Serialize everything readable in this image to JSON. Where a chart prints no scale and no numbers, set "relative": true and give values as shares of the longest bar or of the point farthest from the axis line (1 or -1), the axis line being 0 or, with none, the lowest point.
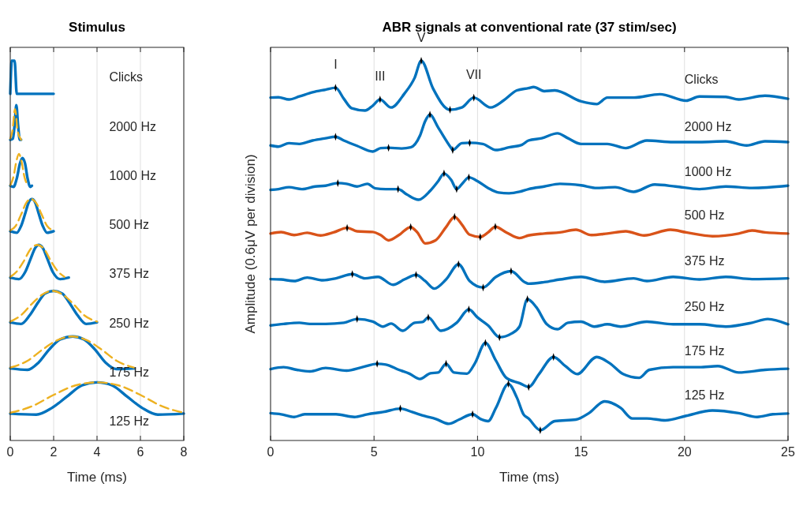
{
  "chart_data": [
    {
      "type": "line",
      "title": "Stimulus",
      "xlabel": "Time (ms)",
      "xlim": [
        0,
        8
      ],
      "xticks": [
        0,
        2,
        4,
        6,
        8
      ],
      "relative": true,
      "grid": "x",
      "annotations": [
        "Clicks",
        "2000 Hz",
        "1000 Hz",
        "500 Hz",
        "375 Hz",
        "250 Hz",
        "175 Hz",
        "125 Hz"
      ],
      "series": [
        {
          "color": "#0072bd",
          "x": [
            0,
            0.07,
            0.2,
            0.3,
            2
          ],
          "values": [
            0.913,
            1,
            1,
            0.913,
            0.913
          ]
        },
        {
          "color": "#0072bd",
          "x": [
            0,
            0.12,
            0.2,
            0.28,
            0.36,
            0.44,
            0.5
          ],
          "values": [
            0.792,
            0.795,
            0.83,
            0.883,
            0.83,
            0.792,
            0.792
          ]
        },
        {
          "color": "#edb120",
          "line_style": "dashed",
          "x": [
            0,
            0.1,
            0.22,
            0.34,
            0.5
          ],
          "values": [
            0.795,
            0.815,
            0.873,
            0.815,
            0.792
          ]
        },
        {
          "color": "#0072bd",
          "x": [
            0,
            0.15,
            0.3,
            0.45,
            0.56,
            0.68,
            0.8,
            0.92,
            1.0
          ],
          "values": [
            0.671,
            0.668,
            0.69,
            0.73,
            0.744,
            0.73,
            0.69,
            0.668,
            0.671
          ]
        },
        {
          "color": "#edb120",
          "line_style": "dashed",
          "x": [
            0,
            0.15,
            0.28,
            0.4,
            0.52,
            0.65,
            0.8
          ],
          "values": [
            0.672,
            0.695,
            0.735,
            0.755,
            0.735,
            0.695,
            0.672
          ]
        },
        {
          "color": "#0072bd",
          "x": [
            0,
            0.3,
            0.5,
            0.7,
            0.85,
            1.0,
            1.15,
            1.3,
            1.5,
            1.7,
            2.0
          ],
          "values": [
            0.551,
            0.547,
            0.565,
            0.6,
            0.627,
            0.636,
            0.627,
            0.6,
            0.565,
            0.547,
            0.551
          ]
        },
        {
          "color": "#edb120",
          "line_style": "dashed",
          "x": [
            0,
            0.25,
            0.5,
            0.75,
            0.95,
            1.2,
            1.45,
            1.7,
            2.0
          ],
          "values": [
            0.553,
            0.565,
            0.595,
            0.627,
            0.636,
            0.625,
            0.595,
            0.565,
            0.553
          ]
        },
        {
          "color": "#0072bd",
          "x": [
            0,
            0.4,
            0.7,
            0.95,
            1.15,
            1.31,
            1.5,
            1.7,
            1.95,
            2.3,
            2.7
          ],
          "values": [
            0.429,
            0.425,
            0.445,
            0.48,
            0.507,
            0.515,
            0.507,
            0.48,
            0.445,
            0.425,
            0.429
          ]
        },
        {
          "color": "#edb120",
          "line_style": "dashed",
          "x": [
            0,
            0.3,
            0.6,
            0.95,
            1.25,
            1.55,
            1.9,
            2.2,
            2.5
          ],
          "values": [
            0.431,
            0.445,
            0.47,
            0.505,
            0.515,
            0.505,
            0.47,
            0.445,
            0.431
          ]
        },
        {
          "color": "#0072bd",
          "x": [
            0,
            0.5,
            0.9,
            1.3,
            1.6,
            2.0,
            2.4,
            2.7,
            3.1,
            3.5,
            4.0
          ],
          "values": [
            0.311,
            0.307,
            0.33,
            0.365,
            0.387,
            0.394,
            0.387,
            0.365,
            0.33,
            0.307,
            0.311
          ]
        },
        {
          "color": "#edb120",
          "line_style": "dashed",
          "x": [
            0,
            0.5,
            1.0,
            1.5,
            1.95,
            2.4,
            2.9,
            3.4,
            4.0
          ],
          "values": [
            0.313,
            0.33,
            0.36,
            0.385,
            0.394,
            0.385,
            0.36,
            0.33,
            0.313
          ]
        },
        {
          "color": "#0072bd",
          "x": [
            0,
            0.8,
            1.3,
            1.8,
            2.3,
            2.88,
            3.4,
            3.9,
            4.4,
            4.9,
            5.73
          ],
          "values": [
            0.19,
            0.186,
            0.205,
            0.24,
            0.266,
            0.274,
            0.266,
            0.24,
            0.205,
            0.188,
            0.19
          ]
        },
        {
          "color": "#edb120",
          "line_style": "dashed",
          "x": [
            0,
            0.8,
            1.5,
            2.2,
            2.85,
            3.5,
            4.2,
            4.9,
            5.7
          ],
          "values": [
            0.192,
            0.21,
            0.24,
            0.265,
            0.274,
            0.265,
            0.24,
            0.21,
            0.192
          ]
        },
        {
          "color": "#0072bd",
          "x": [
            0,
            1.2,
            1.9,
            2.6,
            3.3,
            4.0,
            4.7,
            5.4,
            6.1,
            6.8,
            8
          ],
          "values": [
            0.071,
            0.068,
            0.085,
            0.115,
            0.145,
            0.153,
            0.145,
            0.115,
            0.085,
            0.068,
            0.071
          ]
        },
        {
          "color": "#edb120",
          "line_style": "dashed",
          "x": [
            0,
            1,
            2,
            3,
            4,
            5,
            6,
            7,
            8
          ],
          "values": [
            0.073,
            0.09,
            0.12,
            0.145,
            0.153,
            0.145,
            0.12,
            0.09,
            0.073
          ]
        }
      ]
    },
    {
      "type": "line",
      "title": "ABR signals at conventional rate (37 stim/sec)",
      "xlabel": "Time (ms)",
      "ylabel": "Amplitude (0.6μV per division)",
      "xlim": [
        0,
        25
      ],
      "xticks": [
        0,
        5,
        10,
        15,
        20,
        25
      ],
      "relative": true,
      "grid": "x",
      "annotations": [
        {
          "text": "I",
          "x": 3.14,
          "y": 0.929
        },
        {
          "text": "III",
          "x": 5.29,
          "y": 0.898
        },
        {
          "text": "V",
          "x": 7.28,
          "y": 1
        },
        {
          "text": "VII",
          "x": 9.82,
          "y": 0.903
        }
      ],
      "series": [
        {
          "name": "Clicks",
          "color": "#0072bd",
          "x": [
            0,
            0.38,
            0.89,
            1.39,
            2.03,
            2.66,
            3.14,
            3.54,
            3.92,
            4.56,
            4.94,
            5.29,
            5.82,
            6.46,
            6.96,
            7.28,
            7.85,
            8.67,
            9.24,
            9.82,
            10.63,
            11.27,
            11.9,
            12.46,
            12.71,
            13.22,
            13.73,
            15.0,
            15.76,
            16.27,
            17.54,
            18.81,
            20.08,
            20.72,
            21.99,
            22.62,
            23.89,
            25.0
          ],
          "values": [
            0.903,
            0.904,
            0.898,
            0.906,
            0.917,
            0.924,
            0.929,
            0.9,
            0.875,
            0.869,
            0.882,
            0.898,
            0.877,
            0.913,
            0.955,
            1,
            0.927,
            0.871,
            0.877,
            0.903,
            0.877,
            0.896,
            0.922,
            0.928,
            0.931,
            0.92,
            0.922,
            0.893,
            0.886,
            0.903,
            0.903,
            0.912,
            0.895,
            0.906,
            0.905,
            0.898,
            0.908,
            0.9
          ]
        },
        {
          "name": "2000 Hz",
          "color": "#0072bd",
          "x": [
            0,
            0.38,
            0.89,
            1.39,
            2.03,
            2.66,
            3.14,
            3.54,
            4.18,
            4.94,
            5.32,
            5.7,
            6.33,
            6.77,
            7.22,
            7.47,
            7.7,
            8.1,
            8.73,
            8.8,
            9.24,
            9.62,
            10.25,
            10.89,
            11.52,
            12.15,
            12.46,
            13.1,
            13.86,
            14.37,
            15.0,
            16.27,
            17.16,
            18.18,
            19.45,
            20.72,
            21.99,
            23.0,
            23.89,
            25.0
          ],
          "values": [
            0.777,
            0.774,
            0.783,
            0.781,
            0.79,
            0.796,
            0.8,
            0.79,
            0.776,
            0.761,
            0.77,
            0.771,
            0.769,
            0.772,
            0.803,
            0.841,
            0.858,
            0.824,
            0.77,
            0.765,
            0.783,
            0.784,
            0.781,
            0.765,
            0.772,
            0.779,
            0.79,
            0.796,
            0.809,
            0.796,
            0.781,
            0.781,
            0.77,
            0.79,
            0.786,
            0.786,
            0.788,
            0.777,
            0.788,
            0.786
          ]
        },
        {
          "name": "1000 Hz",
          "color": "#0072bd",
          "x": [
            0,
            0.38,
            0.89,
            1.52,
            2.15,
            2.66,
            3.25,
            3.67,
            4.18,
            4.68,
            5.06,
            5.57,
            6.16,
            6.58,
            7.15,
            7.72,
            8.1,
            8.38,
            8.73,
            8.99,
            9.3,
            9.58,
            10.0,
            10.51,
            11.01,
            11.52,
            12.03,
            12.46,
            13.22,
            13.98,
            15.0,
            15.76,
            16.65,
            17.54,
            18.56,
            19.57,
            20.72,
            21.99,
            23.26,
            25.0
          ],
          "values": [
            0.66,
            0.662,
            0.667,
            0.662,
            0.669,
            0.671,
            0.678,
            0.676,
            0.669,
            0.676,
            0.664,
            0.662,
            0.662,
            0.648,
            0.634,
            0.658,
            0.683,
            0.703,
            0.686,
            0.662,
            0.679,
            0.693,
            0.683,
            0.665,
            0.653,
            0.651,
            0.655,
            0.662,
            0.669,
            0.676,
            0.672,
            0.665,
            0.667,
            0.655,
            0.674,
            0.669,
            0.662,
            0.669,
            0.665,
            0.671
          ]
        },
        {
          "name": "500 Hz",
          "color": "#d95319",
          "x": [
            0,
            0.51,
            1.14,
            1.77,
            2.41,
            3.04,
            3.7,
            4.18,
            4.94,
            5.32,
            5.7,
            6.2,
            6.77,
            7.09,
            7.47,
            7.97,
            8.48,
            8.89,
            9.24,
            9.62,
            10.13,
            10.51,
            10.86,
            11.39,
            12.03,
            12.46,
            13.22,
            13.98,
            14.75,
            15.51,
            16.27,
            17.16,
            18.05,
            19.32,
            20.08,
            21.35,
            22.62,
            23.26,
            23.89,
            25.0
          ],
          "values": [
            0.545,
            0.549,
            0.541,
            0.547,
            0.54,
            0.548,
            0.56,
            0.551,
            0.549,
            0.541,
            0.527,
            0.541,
            0.562,
            0.548,
            0.519,
            0.527,
            0.562,
            0.589,
            0.569,
            0.542,
            0.536,
            0.548,
            0.563,
            0.548,
            0.533,
            0.54,
            0.545,
            0.548,
            0.555,
            0.541,
            0.545,
            0.551,
            0.54,
            0.555,
            0.548,
            0.538,
            0.545,
            0.553,
            0.548,
            0.545
          ]
        },
        {
          "name": "375 Hz",
          "color": "#0072bd",
          "x": [
            0,
            0.51,
            1.14,
            1.77,
            2.53,
            3.16,
            3.95,
            4.56,
            5.19,
            5.92,
            6.46,
            7.03,
            7.47,
            7.91,
            8.48,
            9.08,
            9.62,
            10.27,
            10.89,
            11.62,
            12.28,
            12.46,
            13.22,
            13.98,
            15.0,
            16.14,
            17.54,
            18.18,
            19.45,
            20.72,
            21.99,
            23.26,
            25.0
          ],
          "values": [
            0.425,
            0.424,
            0.42,
            0.429,
            0.422,
            0.427,
            0.438,
            0.427,
            0.431,
            0.41,
            0.424,
            0.436,
            0.42,
            0.4,
            0.424,
            0.464,
            0.42,
            0.403,
            0.431,
            0.446,
            0.417,
            0.413,
            0.417,
            0.424,
            0.431,
            0.418,
            0.427,
            0.42,
            0.431,
            0.424,
            0.431,
            0.425,
            0.427
          ]
        },
        {
          "name": "250 Hz",
          "color": "#0072bd",
          "x": [
            0,
            0.63,
            1.39,
            1.9,
            2.66,
            3.54,
            4.18,
            4.94,
            5.44,
            5.82,
            6.39,
            6.96,
            7.34,
            7.62,
            8.23,
            8.99,
            9.58,
            10.0,
            10.51,
            11.06,
            11.65,
            12.03,
            12.41,
            12.84,
            13.35,
            13.86,
            14.37,
            15.0,
            15.64,
            16.27,
            16.91,
            18.18,
            19.45,
            20.72,
            21.99,
            23.26,
            24.02,
            25.0
          ],
          "values": [
            0.303,
            0.307,
            0.31,
            0.307,
            0.307,
            0.31,
            0.32,
            0.313,
            0.3,
            0.308,
            0.289,
            0.31,
            0.312,
            0.324,
            0.289,
            0.31,
            0.345,
            0.324,
            0.303,
            0.272,
            0.282,
            0.3,
            0.372,
            0.351,
            0.306,
            0.293,
            0.31,
            0.313,
            0.3,
            0.306,
            0.3,
            0.313,
            0.306,
            0.306,
            0.3,
            0.31,
            0.32,
            0.306
          ]
        },
        {
          "name": "175 Hz",
          "color": "#0072bd",
          "x": [
            0,
            0.63,
            1.27,
            1.9,
            2.66,
            3.67,
            4.43,
            5.15,
            5.57,
            6.2,
            6.71,
            7.22,
            7.72,
            8.1,
            8.48,
            8.86,
            9.49,
            9.87,
            10.38,
            10.89,
            11.39,
            12.03,
            12.47,
            12.97,
            13.67,
            14.24,
            14.81,
            15.76,
            16.4,
            17.03,
            17.8,
            18.3,
            19.45,
            20.72,
            21.61,
            22.62,
            23.89,
            25.0
          ],
          "values": [
            0.188,
            0.193,
            0.186,
            0.182,
            0.191,
            0.184,
            0.193,
            0.202,
            0.2,
            0.186,
            0.176,
            0.162,
            0.177,
            0.179,
            0.202,
            0.179,
            0.176,
            0.203,
            0.257,
            0.21,
            0.165,
            0.151,
            0.141,
            0.175,
            0.22,
            0.196,
            0.175,
            0.22,
            0.203,
            0.175,
            0.165,
            0.186,
            0.193,
            0.193,
            0.196,
            0.179,
            0.186,
            0.189
          ]
        },
        {
          "name": "125 Hz",
          "color": "#0072bd",
          "x": [
            0,
            0.51,
            1.14,
            1.65,
            2.41,
            3.16,
            4.05,
            4.68,
            5.44,
            6.27,
            6.84,
            7.47,
            7.97,
            8.61,
            9.11,
            9.76,
            10.13,
            10.51,
            10.89,
            11.49,
            11.9,
            12.22,
            12.46,
            13.03,
            13.73,
            14.75,
            15.38,
            16.14,
            16.91,
            17.48,
            18.18,
            19.07,
            20.08,
            21.35,
            22.62,
            23.51,
            24.27,
            25.0
          ],
          "values": [
            0.072,
            0.069,
            0.062,
            0.069,
            0.069,
            0.069,
            0.062,
            0.069,
            0.075,
            0.084,
            0.075,
            0.064,
            0.057,
            0.044,
            0.055,
            0.069,
            0.057,
            0.051,
            0.086,
            0.149,
            0.113,
            0.069,
            0.058,
            0.027,
            0.051,
            0.055,
            0.072,
            0.103,
            0.086,
            0.058,
            0.058,
            0.053,
            0.065,
            0.079,
            0.072,
            0.062,
            0.069,
            0.071
          ]
        },
        {
          "type": "scatter",
          "marker": "diamond",
          "color": "#000000",
          "x": [
            3.14,
            5.29,
            7.28,
            8.67,
            9.82,
            3.14,
            5.7,
            7.7,
            8.8,
            9.62,
            3.25,
            6.16,
            8.38,
            8.99,
            9.58,
            3.7,
            6.77,
            8.89,
            10.13,
            10.86,
            3.95,
            7.03,
            9.08,
            10.27,
            11.62,
            4.18,
            7.62,
            9.58,
            11.06,
            12.41,
            5.15,
            8.48,
            10.38,
            12.47,
            13.67,
            6.27,
            9.76,
            11.49,
            13.03
          ],
          "values": [
            0.929,
            0.898,
            1,
            0.871,
            0.903,
            0.8,
            0.771,
            0.858,
            0.765,
            0.784,
            0.678,
            0.662,
            0.703,
            0.662,
            0.693,
            0.56,
            0.562,
            0.589,
            0.536,
            0.563,
            0.438,
            0.436,
            0.464,
            0.403,
            0.446,
            0.32,
            0.324,
            0.345,
            0.272,
            0.372,
            0.202,
            0.202,
            0.257,
            0.141,
            0.22,
            0.084,
            0.069,
            0.149,
            0.027
          ]
        }
      ]
    }
  ]
}
